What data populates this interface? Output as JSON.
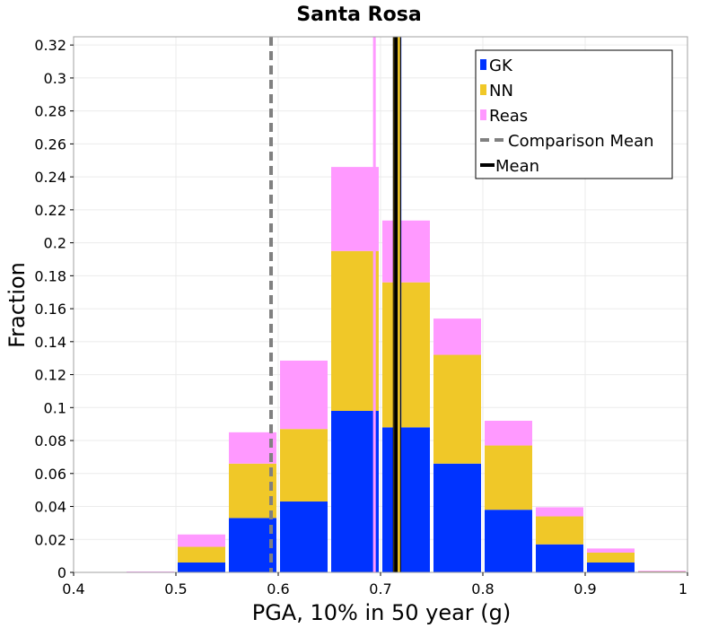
{
  "chart_data": {
    "type": "bar",
    "stacked": true,
    "title": "Santa Rosa",
    "xlabel": "PGA, 10% in 50 year (g)",
    "ylabel": "Fraction",
    "xlim": [
      0.4,
      1.0
    ],
    "ylim": [
      0,
      0.325
    ],
    "xticks": [
      "0.4",
      "0.5",
      "0.6",
      "0.7",
      "0.8",
      "0.9",
      "1"
    ],
    "yticks": [
      "0",
      "0.02",
      "0.04",
      "0.06",
      "0.08",
      "0.1",
      "0.12",
      "0.14",
      "0.16",
      "0.18",
      "0.2",
      "0.22",
      "0.24",
      "0.26",
      "0.28",
      "0.3",
      "0.32"
    ],
    "grid": true,
    "bin_width": 0.05,
    "bin_centers": [
      0.425,
      0.475,
      0.525,
      0.575,
      0.625,
      0.675,
      0.725,
      0.775,
      0.825,
      0.875,
      0.925,
      0.975
    ],
    "series": [
      {
        "name": "GK",
        "color": "#0033ff",
        "values": [
          0.0,
          0.0,
          0.006,
          0.033,
          0.043,
          0.098,
          0.088,
          0.066,
          0.038,
          0.017,
          0.006,
          0.0005
        ]
      },
      {
        "name": "NN",
        "color": "#f0c828",
        "values": [
          0.0,
          0.0,
          0.0095,
          0.033,
          0.044,
          0.097,
          0.088,
          0.066,
          0.039,
          0.017,
          0.006,
          0.0003
        ]
      },
      {
        "name": "Reas",
        "color": "#ff99ff",
        "values": [
          0.0,
          0.0005,
          0.0075,
          0.019,
          0.0415,
          0.051,
          0.0375,
          0.022,
          0.015,
          0.0055,
          0.0025,
          0.0002
        ]
      }
    ],
    "lines": [
      {
        "name": "Reas Mean",
        "x": 0.694,
        "color": "#ff99ff",
        "style": "solid",
        "in_legend": false
      },
      {
        "name": "GK Mean",
        "x": 0.719,
        "color": "#0033ff",
        "style": "solid",
        "in_legend": false
      },
      {
        "name": "NN Mean",
        "x": 0.716,
        "color": "#f0c828",
        "style": "solid",
        "in_legend": false
      },
      {
        "name": "Comparison Mean",
        "x": 0.593,
        "color": "#808080",
        "style": "dashed",
        "in_legend": true
      },
      {
        "name": "Mean",
        "x": 0.715,
        "color": "#000000",
        "style": "solid",
        "in_legend": true
      }
    ],
    "legend": {
      "position": "top-right",
      "entries": [
        {
          "label": "GK",
          "kind": "swatch",
          "color": "#0033ff"
        },
        {
          "label": "NN",
          "kind": "swatch",
          "color": "#f0c828"
        },
        {
          "label": "Reas",
          "kind": "swatch",
          "color": "#ff99ff"
        },
        {
          "label": "Comparison Mean",
          "kind": "dashed",
          "color": "#808080"
        },
        {
          "label": "Mean",
          "kind": "solid",
          "color": "#000000"
        }
      ]
    }
  }
}
